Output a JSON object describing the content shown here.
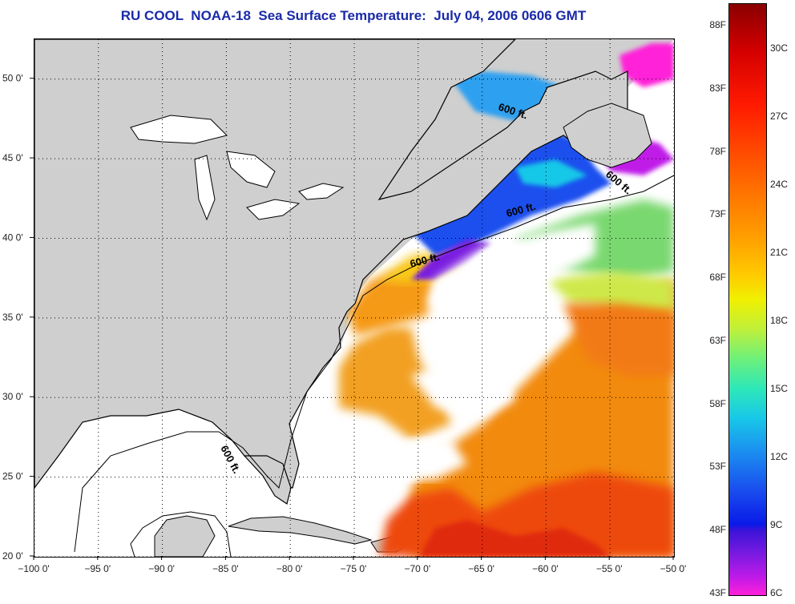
{
  "title": "RU COOL  NOAA-18  Sea Surface Temperature:  July 04, 2006 0606 GMT",
  "map": {
    "lon_range": [
      -100,
      -50
    ],
    "lat_range": [
      20,
      52.5
    ],
    "lon_ticks": [
      {
        "value": -100,
        "label": "−100 0'"
      },
      {
        "value": -95,
        "label": "−95 0'"
      },
      {
        "value": -90,
        "label": "−90 0'"
      },
      {
        "value": -85,
        "label": "−85 0'"
      },
      {
        "value": -80,
        "label": "−80 0'"
      },
      {
        "value": -75,
        "label": "−75 0'"
      },
      {
        "value": -70,
        "label": "−70 0'"
      },
      {
        "value": -65,
        "label": "−65 0'"
      },
      {
        "value": -60,
        "label": "−60 0'"
      },
      {
        "value": -55,
        "label": "−55 0'"
      },
      {
        "value": -50,
        "label": "−50 0'"
      }
    ],
    "lat_ticks": [
      {
        "value": 50,
        "label": "50 0'"
      },
      {
        "value": 45,
        "label": "45 0'"
      },
      {
        "value": 40,
        "label": "40 0'"
      },
      {
        "value": 35,
        "label": "35 0'"
      },
      {
        "value": 30,
        "label": "30 0'"
      },
      {
        "value": 25,
        "label": "25 0'"
      },
      {
        "value": 20,
        "label": "20 0'"
      }
    ],
    "depth_labels": [
      "600 ft.",
      "600 ft.",
      "600 ft.",
      "600 ft.",
      "600 ft."
    ],
    "colors": {
      "land": "#cfcfcf",
      "cloud": "#ffffff",
      "coast": "#000000"
    }
  },
  "colorbar": {
    "fahrenheit": [
      "88F",
      "83F",
      "78F",
      "73F",
      "68F",
      "63F",
      "58F",
      "53F",
      "48F",
      "43F"
    ],
    "celsius": [
      "30C",
      "27C",
      "24C",
      "21C",
      "18C",
      "15C",
      "12C",
      "9C",
      "6C"
    ]
  }
}
